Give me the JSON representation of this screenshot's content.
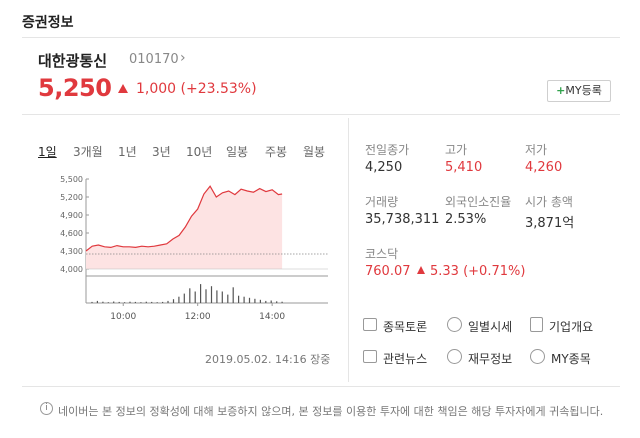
{
  "section_title": "증권정보",
  "stock": {
    "name": "대한광통신",
    "code": "010170",
    "price": "5,250",
    "change": "1,000 (+23.53%)",
    "my_button": "MY등록"
  },
  "tabs": [
    "1일",
    "3개월",
    "1년",
    "3년",
    "10년",
    "일봉",
    "주봉",
    "월봉"
  ],
  "chart_data": {
    "type": "area",
    "title": "",
    "x_ticks": [
      "10:00",
      "12:00",
      "14:00"
    ],
    "y_ticks": [
      4000,
      4300,
      4600,
      4900,
      5200,
      5500
    ],
    "y_tick_labels": [
      "4,000",
      "4,300",
      "4,600",
      "4,900",
      "5,200",
      "5,500"
    ],
    "ylim": [
      4000,
      5500
    ],
    "baseline": 4250,
    "series": [
      {
        "x": [
          "09:00",
          "09:10",
          "09:20",
          "09:30",
          "09:40",
          "09:50",
          "10:00",
          "10:10",
          "10:20",
          "10:30",
          "10:40",
          "10:50",
          "11:00",
          "11:10",
          "11:20",
          "11:30",
          "11:40",
          "11:50",
          "12:00",
          "12:10",
          "12:20",
          "12:30",
          "12:40",
          "12:50",
          "13:00",
          "13:10",
          "13:20",
          "13:30",
          "13:40",
          "13:50",
          "14:00",
          "14:10",
          "14:16"
        ],
        "values": [
          4300,
          4380,
          4400,
          4370,
          4360,
          4390,
          4370,
          4370,
          4360,
          4380,
          4370,
          4380,
          4400,
          4420,
          4500,
          4560,
          4700,
          4880,
          5000,
          5250,
          5380,
          5200,
          5270,
          5300,
          5240,
          5330,
          5300,
          5280,
          5340,
          5290,
          5320,
          5240,
          5250
        ]
      }
    ],
    "volume": [
      0.05,
      0.1,
      0.06,
      0.04,
      0.07,
      0.05,
      0.04,
      0.06,
      0.05,
      0.04,
      0.06,
      0.05,
      0.04,
      0.05,
      0.1,
      0.18,
      0.3,
      0.45,
      0.7,
      0.55,
      0.9,
      0.65,
      0.8,
      0.6,
      0.55,
      0.4,
      0.75,
      0.35,
      0.3,
      0.25,
      0.2,
      0.15,
      0.1,
      0.12,
      0.08,
      0.06
    ]
  },
  "stats": {
    "prev_close_label": "전일종가",
    "prev_close": "4,250",
    "high_label": "고가",
    "high": "5,410",
    "low_label": "저가",
    "low": "4,260",
    "volume_label": "거래량",
    "volume": "35,738,311",
    "foreign_label": "외국인소진율",
    "foreign": "2.53%",
    "mcap_label": "시가 총액",
    "mcap": "3,871억"
  },
  "index": {
    "label": "코스닥",
    "value": "760.07",
    "change": "5.33 (+0.71%)"
  },
  "menu": {
    "item1": "종목토론",
    "item2": "일별시세",
    "item3": "기업개요",
    "item4": "관련뉴스",
    "item5": "재무정보",
    "item6": "MY종목"
  },
  "timestamp": "2019.05.02. 14:16 장중",
  "disclaimer": "네이버는 본 정보의 정확성에 대해 보증하지 않으며, 본 정보를 이용한 투자에 대한 책임은 해당 투자자에게 귀속됩니다.",
  "colors": {
    "up": "#e0393e",
    "area_fill": "#fde3e3",
    "buy": "#31a24c"
  }
}
